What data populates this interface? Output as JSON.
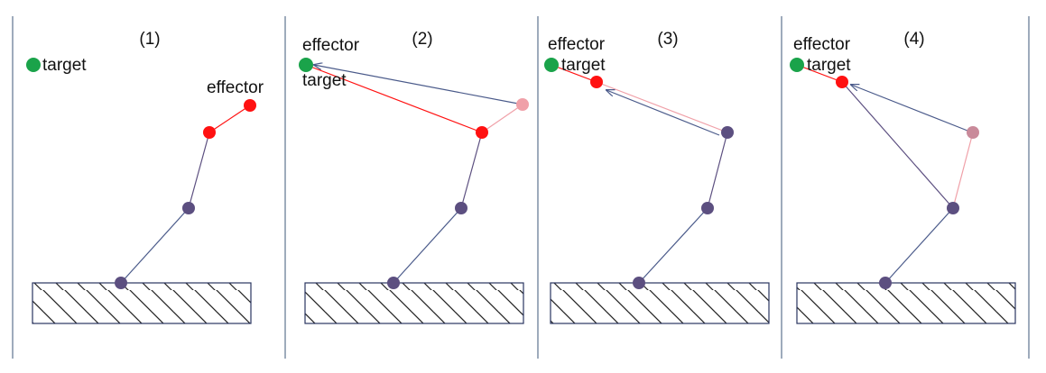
{
  "colors": {
    "divider": "#7f8fa6",
    "joint": "#5c4f80",
    "bone": "#5c4f80",
    "link_blue": "#4a5a8a",
    "active": "#ff1111",
    "ghost": "#f0a0a8",
    "target": "#1aa34a",
    "base_stroke": "#2a3560",
    "hatch": "#222222"
  },
  "panels": [
    {
      "number": "(1)",
      "target_label": "target",
      "effector_label": "effector"
    },
    {
      "number": "(2)",
      "target_label": "target",
      "effector_label": "effector"
    },
    {
      "number": "(3)",
      "target_label": "target",
      "effector_label": "effector"
    },
    {
      "number": "(4)",
      "target_label": "target",
      "effector_label": "effector"
    }
  ]
}
